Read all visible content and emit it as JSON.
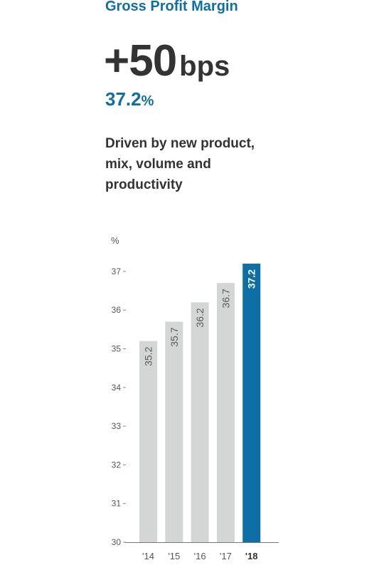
{
  "header": {
    "title": "Gross Profit Margin",
    "headline_value": "+50",
    "headline_unit": "bps",
    "sub_value": "37.2",
    "sub_unit": "%",
    "description": "Driven by new product, mix, volume and productivity"
  },
  "colors": {
    "accent": "#0e6fa6",
    "bar_default": "#d3d6d5",
    "text_dark": "#333333",
    "axis_text": "#555555"
  },
  "chart_data": {
    "type": "bar",
    "ylabel": "%",
    "categories": [
      "'14",
      "'15",
      "'16",
      "'17",
      "'18"
    ],
    "values": [
      35.2,
      35.7,
      36.2,
      36.7,
      37.2
    ],
    "data_labels": [
      "35.2",
      "35.7",
      "36.2",
      "36.7",
      "37.2"
    ],
    "ylim": [
      30,
      37.3
    ],
    "yticks": [
      30,
      31,
      32,
      33,
      34,
      35,
      36,
      37
    ],
    "highlight_category": "'18",
    "grid": false,
    "legend": "none"
  }
}
